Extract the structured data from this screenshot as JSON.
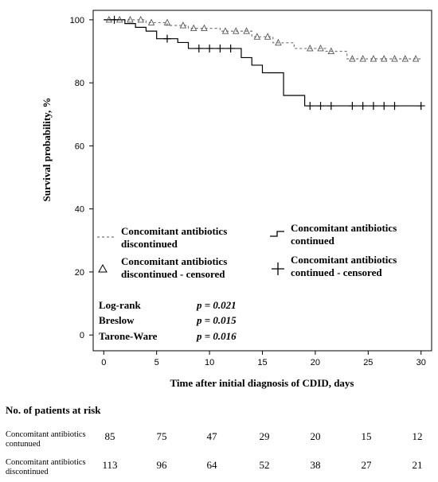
{
  "chart_data": {
    "type": "line",
    "xlabel": "Time after initial diagnosis of CDID, days",
    "ylabel": "Survival probability, %",
    "xlim": [
      -1,
      31
    ],
    "ylim": [
      -5,
      103
    ],
    "x_ticks": [
      0,
      5,
      10,
      15,
      20,
      25,
      30
    ],
    "y_ticks": [
      0,
      20,
      40,
      60,
      80,
      100
    ],
    "grid": false,
    "series": [
      {
        "name": "Concomitant antibiotics discontinued",
        "style": "dashed-step",
        "x": [
          0,
          1,
          2,
          3,
          4,
          5,
          6,
          7,
          8,
          10,
          11,
          13,
          14,
          15,
          16,
          17,
          18,
          20,
          21,
          22,
          23,
          30
        ],
        "y": [
          100,
          100,
          100,
          100,
          99.1,
          99.1,
          98.2,
          98.2,
          97.3,
          97.3,
          96.4,
          96.4,
          94.6,
          94.6,
          92.7,
          92.7,
          90.9,
          90.9,
          90.0,
          90.0,
          87.6,
          87.6
        ]
      },
      {
        "name": "Concomitant antibiotics continued",
        "style": "solid-step",
        "x": [
          0,
          2,
          3,
          4,
          5,
          7,
          8,
          13,
          14,
          15,
          17,
          19,
          30
        ],
        "y": [
          100,
          98.8,
          97.6,
          96.4,
          94.0,
          92.8,
          90.9,
          88.0,
          85.6,
          83.2,
          76.0,
          72.7,
          72.7
        ]
      }
    ],
    "censored": [
      {
        "name": "Concomitant antibiotics discontinued - censored",
        "marker": "triangle",
        "x": [
          0.5,
          1.5,
          2.5,
          3.5,
          4.5,
          6,
          7.5,
          8.5,
          9.5,
          11.5,
          12.5,
          13.5,
          14.5,
          15.5,
          16.5,
          19.5,
          20.5,
          21.5,
          23.5,
          24.5,
          25.5,
          26.5,
          27.5,
          28.5,
          29.5
        ],
        "y": [
          100,
          100,
          100,
          100,
          99.1,
          99.1,
          98.2,
          97.3,
          97.3,
          96.4,
          96.4,
          96.4,
          94.6,
          94.6,
          92.7,
          90.9,
          90.9,
          90.0,
          87.6,
          87.6,
          87.6,
          87.6,
          87.6,
          87.6,
          87.6
        ]
      },
      {
        "name": "Concomitant antibiotics continued - censored",
        "marker": "plus",
        "x": [
          1,
          6,
          9,
          10,
          11,
          12,
          19.5,
          20.5,
          21.5,
          23.5,
          24.5,
          25.5,
          26.5,
          27.5,
          30
        ],
        "y": [
          100,
          94.0,
          90.9,
          90.9,
          90.9,
          90.9,
          72.7,
          72.7,
          72.7,
          72.7,
          72.7,
          72.7,
          72.7,
          72.7,
          72.7
        ]
      }
    ],
    "legend": {
      "placement": "bottom-left",
      "entries": [
        {
          "line1": "Concomitant antibiotics",
          "line2": "discontinued"
        },
        {
          "line1": "Concomitant antibiotics",
          "line2": "continued"
        },
        {
          "line1": "Concomitant antibiotics",
          "line2": "discontinued - censored"
        },
        {
          "line1": "Concomitant antibiotics",
          "line2": "continued - censored"
        }
      ]
    },
    "stats": [
      {
        "test": "Log-rank",
        "p": "p = 0.021"
      },
      {
        "test": "Breslow",
        "p": "p = 0.015"
      },
      {
        "test": "Tarone-Ware",
        "p": "p = 0.016"
      }
    ]
  },
  "risk_table": {
    "title": "No. of patients at risk",
    "rows": [
      {
        "label": "Concomitant antibiotics contunued",
        "values": [
          "85",
          "75",
          "47",
          "29",
          "20",
          "15",
          "12"
        ]
      },
      {
        "label": "Concomitant antibiotics discontinued",
        "values": [
          "113",
          "96",
          "64",
          "52",
          "38",
          "27",
          "21"
        ]
      }
    ]
  }
}
